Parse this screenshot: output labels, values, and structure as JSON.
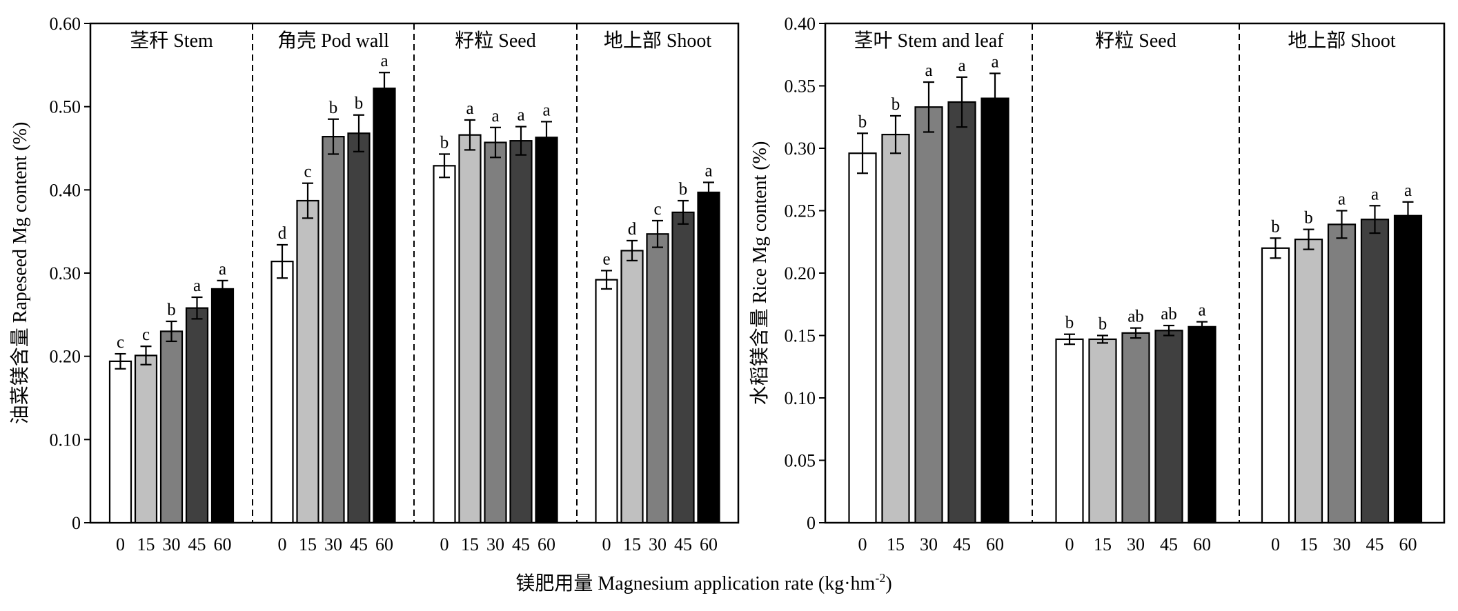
{
  "x_title_main": "镁肥用量 Magnesium application rate (kg·hm",
  "x_title_sup": "-2",
  "x_title_end": ")",
  "chart_data": [
    {
      "type": "bar",
      "ylabel": "油菜镁含量 Rapeseed Mg content (%)",
      "ylim": [
        0,
        0.6
      ],
      "yticks": [
        0,
        0.1,
        0.2,
        0.3,
        0.4,
        0.5,
        0.6
      ],
      "ytick_labels": [
        "0",
        "0.10",
        "0.20",
        "0.30",
        "0.40",
        "0.50",
        "0.60"
      ],
      "categories": [
        "0",
        "15",
        "30",
        "45",
        "60"
      ],
      "colors": [
        "#ffffff",
        "#c0c0c0",
        "#7f7f7f",
        "#404040",
        "#000000"
      ],
      "grid": false,
      "groups": [
        {
          "name": "茎秆 Stem",
          "values": [
            0.194,
            0.201,
            0.23,
            0.258,
            0.281
          ],
          "errors": [
            0.009,
            0.011,
            0.012,
            0.013,
            0.01
          ],
          "letters": [
            "c",
            "c",
            "b",
            "a",
            "a"
          ]
        },
        {
          "name": "角壳 Pod wall",
          "values": [
            0.314,
            0.387,
            0.464,
            0.468,
            0.522
          ],
          "errors": [
            0.02,
            0.021,
            0.021,
            0.022,
            0.019
          ],
          "letters": [
            "d",
            "c",
            "b",
            "b",
            "a"
          ]
        },
        {
          "name": "籽粒 Seed",
          "values": [
            0.429,
            0.466,
            0.457,
            0.459,
            0.463
          ],
          "errors": [
            0.014,
            0.018,
            0.018,
            0.017,
            0.019
          ],
          "letters": [
            "b",
            "a",
            "a",
            "a",
            "a"
          ]
        },
        {
          "name": "地上部 Shoot",
          "values": [
            0.292,
            0.327,
            0.347,
            0.373,
            0.397
          ],
          "errors": [
            0.011,
            0.012,
            0.016,
            0.014,
            0.012
          ],
          "letters": [
            "e",
            "d",
            "c",
            "b",
            "a"
          ]
        }
      ]
    },
    {
      "type": "bar",
      "ylabel": "水稻镁含量 Rice Mg content (%)",
      "ylim": [
        0,
        0.4
      ],
      "yticks": [
        0,
        0.05,
        0.1,
        0.15,
        0.2,
        0.25,
        0.3,
        0.35,
        0.4
      ],
      "ytick_labels": [
        "0",
        "0.05",
        "0.10",
        "0.15",
        "0.20",
        "0.25",
        "0.30",
        "0.35",
        "0.40"
      ],
      "categories": [
        "0",
        "15",
        "30",
        "45",
        "60"
      ],
      "colors": [
        "#ffffff",
        "#c0c0c0",
        "#7f7f7f",
        "#404040",
        "#000000"
      ],
      "grid": false,
      "groups": [
        {
          "name": "茎叶 Stem and leaf",
          "values": [
            0.296,
            0.311,
            0.333,
            0.337,
            0.34
          ],
          "errors": [
            0.016,
            0.015,
            0.02,
            0.02,
            0.02
          ],
          "letters": [
            "b",
            "b",
            "a",
            "a",
            "a"
          ]
        },
        {
          "name": "籽粒 Seed",
          "values": [
            0.147,
            0.147,
            0.152,
            0.154,
            0.157
          ],
          "errors": [
            0.004,
            0.003,
            0.004,
            0.004,
            0.004
          ],
          "letters": [
            "b",
            "b",
            "ab",
            "ab",
            "a"
          ]
        },
        {
          "name": "地上部 Shoot",
          "values": [
            0.22,
            0.227,
            0.239,
            0.243,
            0.246
          ],
          "errors": [
            0.008,
            0.008,
            0.011,
            0.011,
            0.011
          ],
          "letters": [
            "b",
            "b",
            "a",
            "a",
            "a"
          ]
        }
      ]
    }
  ]
}
